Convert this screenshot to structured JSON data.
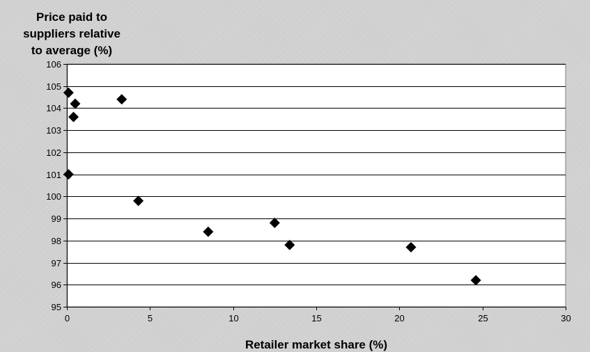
{
  "chart_data": {
    "type": "scatter",
    "title": "",
    "ylabel_lines": [
      "Price paid to",
      "suppliers relative",
      "to average (%)"
    ],
    "xlabel": "Retailer market share (%)",
    "xlim": [
      0,
      30
    ],
    "ylim": [
      95,
      106
    ],
    "xticks": [
      0,
      5,
      10,
      15,
      20,
      25,
      30
    ],
    "yticks": [
      95,
      96,
      97,
      98,
      99,
      100,
      101,
      102,
      103,
      104,
      105,
      106
    ],
    "grid": "horizontal",
    "legend": "none",
    "marker": "diamond",
    "marker_color": "#000000",
    "plot_background": "#ffffff",
    "points": [
      {
        "x": 0.1,
        "y": 104.7
      },
      {
        "x": 0.5,
        "y": 104.2
      },
      {
        "x": 0.4,
        "y": 103.6
      },
      {
        "x": 3.3,
        "y": 104.4
      },
      {
        "x": 0.1,
        "y": 101.0
      },
      {
        "x": 4.3,
        "y": 99.8
      },
      {
        "x": 8.5,
        "y": 98.4
      },
      {
        "x": 12.5,
        "y": 98.8
      },
      {
        "x": 13.4,
        "y": 97.8
      },
      {
        "x": 20.7,
        "y": 97.7
      },
      {
        "x": 24.6,
        "y": 96.2
      }
    ]
  }
}
